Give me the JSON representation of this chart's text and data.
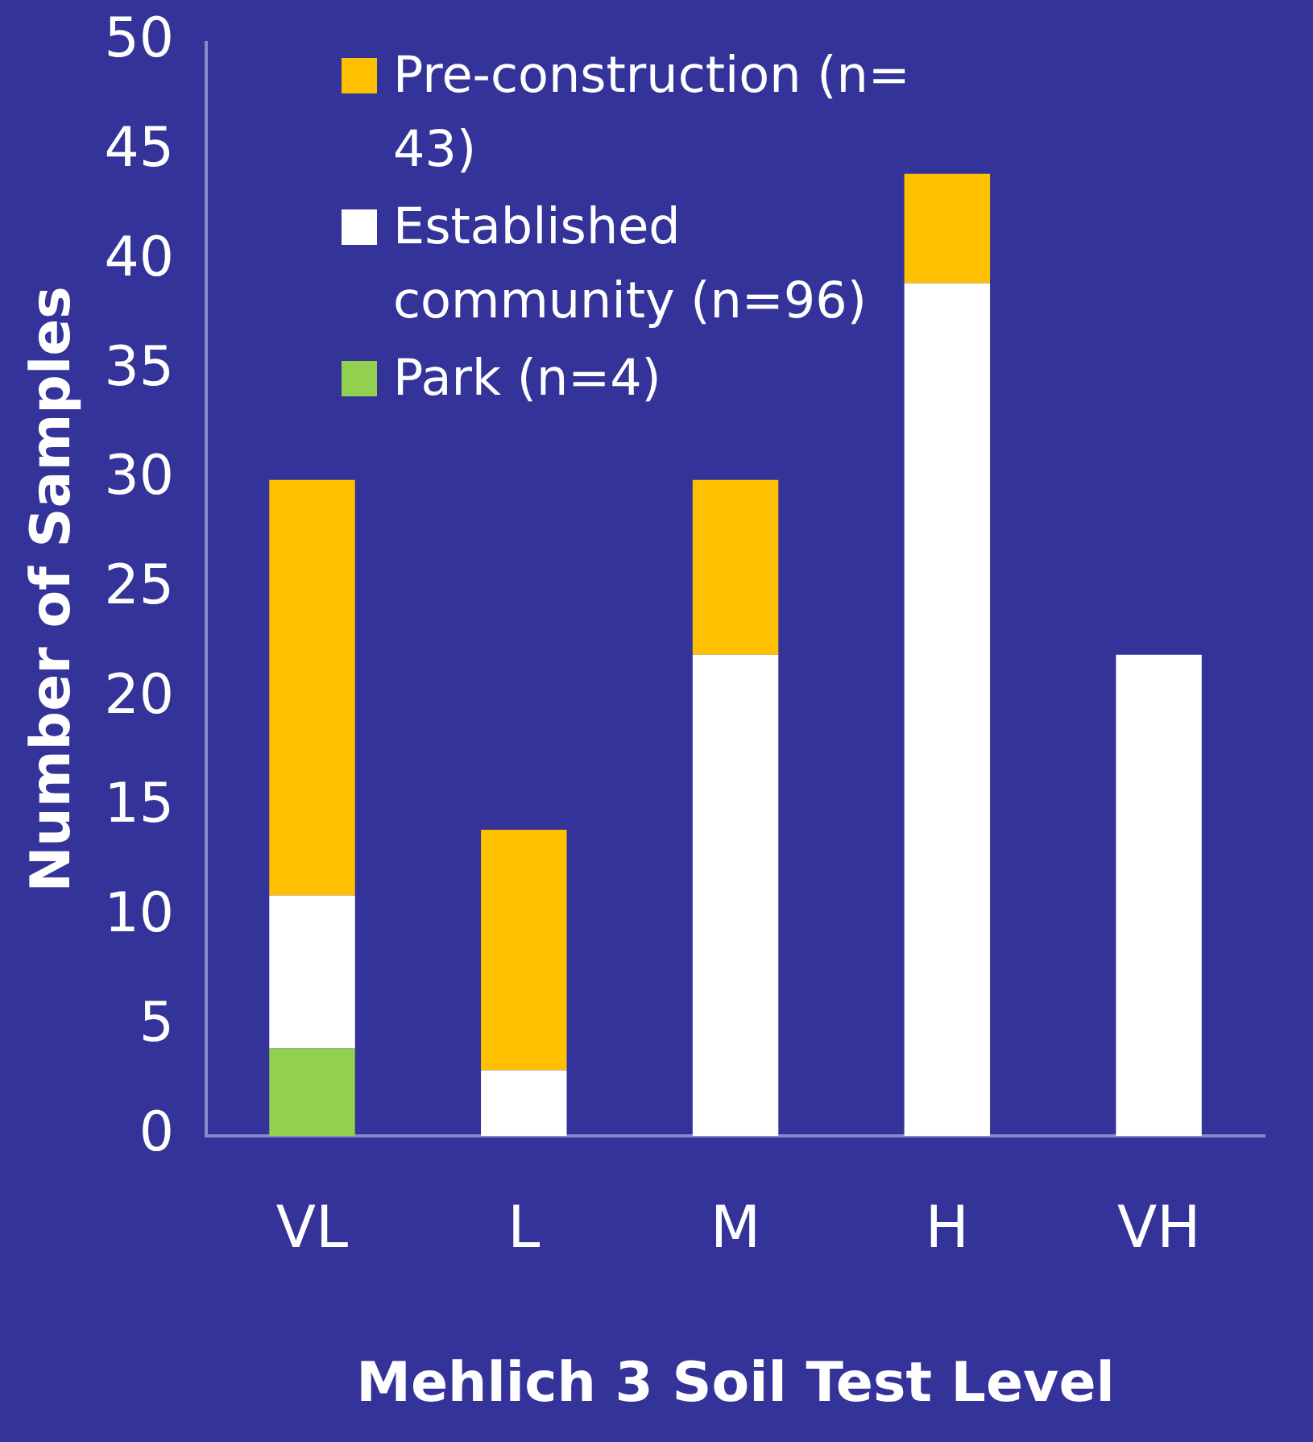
{
  "chart_data": {
    "type": "bar",
    "xlabel": "Mehlich 3 Soil Test Level",
    "ylabel": "Number of Samples",
    "categories": [
      "VL",
      "L",
      "M",
      "H",
      "VH"
    ],
    "stacked": true,
    "series": [
      {
        "name": "Park (n=4)",
        "color": "#92d050",
        "values": [
          4,
          0,
          0,
          0,
          0
        ]
      },
      {
        "name": "Established community (n=96)",
        "color": "#ffffff",
        "values": [
          7,
          3,
          22,
          39,
          22
        ]
      },
      {
        "name": "Pre-construction (n= 43)",
        "color": "#ffc000",
        "values": [
          19,
          11,
          8,
          5,
          0
        ]
      }
    ],
    "ylim": [
      0,
      50
    ],
    "yticks": [
      0,
      5,
      10,
      15,
      20,
      25,
      30,
      35,
      40,
      45,
      50
    ],
    "grid": false,
    "legend": "top left"
  }
}
